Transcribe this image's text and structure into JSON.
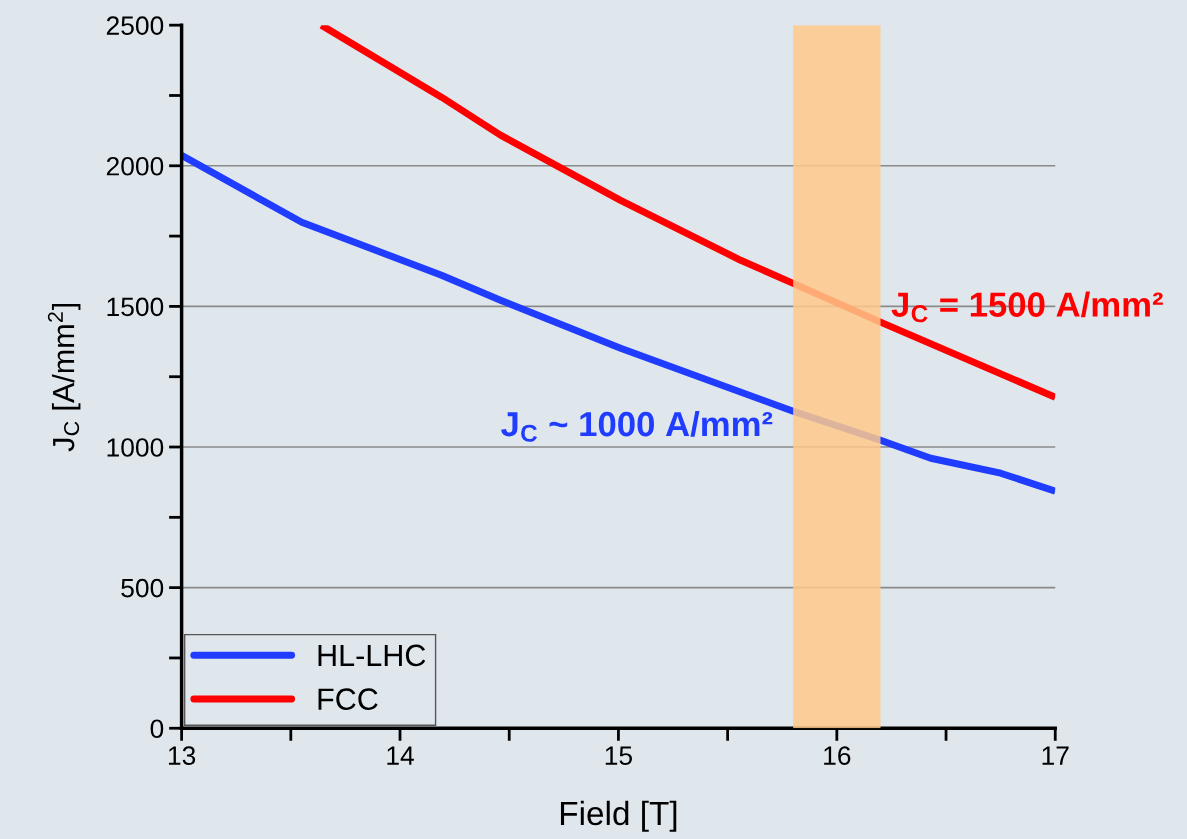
{
  "chart_data": {
    "type": "line",
    "xlabel": "Field [T]",
    "ylabel": "J$_{C}$ [A/mm$^{2}$]",
    "xlim": [
      13,
      17
    ],
    "ylim": [
      0,
      2500
    ],
    "xticks": [
      13,
      {
        "value": 13.5,
        "label": null
      },
      14,
      {
        "value": 14.5,
        "label": null
      },
      15,
      {
        "value": 15.5,
        "label": null
      },
      16,
      {
        "value": 16.5,
        "label": null
      },
      17
    ],
    "yticks": [
      0,
      {
        "value": 250,
        "label": null
      },
      500,
      {
        "value": 750,
        "label": null
      },
      1000,
      {
        "value": 1250,
        "label": null
      },
      1500,
      {
        "value": 1750,
        "label": null
      },
      2000,
      {
        "value": 2250,
        "label": null
      },
      2500
    ],
    "grid": "y",
    "legend": "bottom left",
    "line_style": "solid",
    "marker": "none",
    "series": [
      {
        "name": "HL-LHC",
        "color": "#1f3cff",
        "x": [
          13,
          13.55,
          14.19,
          14.46,
          15.01,
          15.8,
          16.2,
          16.43,
          16.75,
          17
        ],
        "values": [
          2037,
          1799,
          1611,
          1522,
          1351,
          1127,
          1024,
          960,
          907,
          843
        ]
      },
      {
        "name": "FCC",
        "color": "#ff0000",
        "x": [
          13.64,
          14.19,
          14.46,
          15.01,
          15.56,
          15.8,
          16.2,
          17
        ],
        "values": [
          2500,
          2244,
          2109,
          1877,
          1664,
          1582,
          1444,
          1177
        ]
      }
    ],
    "bands": [
      {
        "axis": "x",
        "from": 15.8,
        "to": 16.2,
        "color": "#ffc88a"
      }
    ],
    "annotations": [
      "J$_{C}$ ~ 1000 A/mm²",
      "J$_{C}$ = 1500 A/mm²"
    ]
  }
}
